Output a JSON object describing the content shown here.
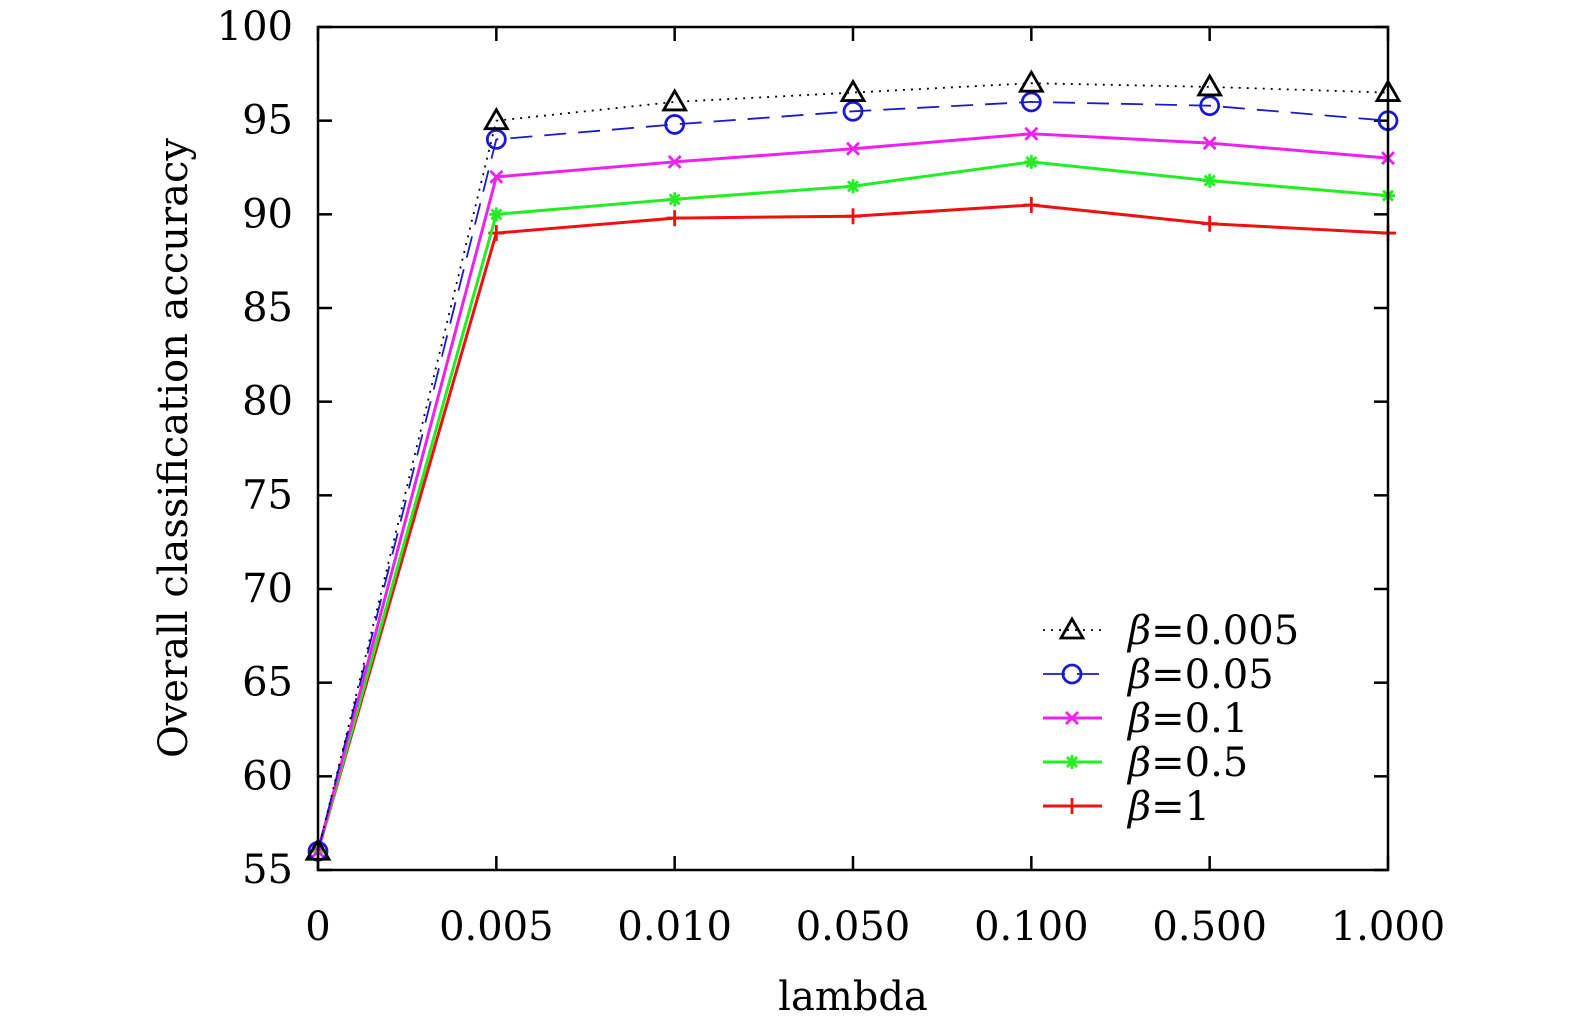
{
  "chart_data": {
    "type": "line",
    "title": "",
    "xlabel": "lambda",
    "ylabel": "Overall classification accuracy",
    "categories": [
      "0",
      "0.005",
      "0.010",
      "0.050",
      "0.100",
      "0.500",
      "1.000"
    ],
    "ylim": [
      55,
      100
    ],
    "yticks": [
      55,
      60,
      65,
      70,
      75,
      80,
      85,
      90,
      95,
      100
    ],
    "grid": false,
    "legend_position": "bottom-right",
    "series": [
      {
        "name": "β=0.005",
        "symbol": "β",
        "value_text": "=0.005",
        "color": "#000000",
        "line_style": "dotted",
        "marker": "triangle",
        "values": [
          56,
          95,
          96,
          96.5,
          97,
          96.8,
          96.5
        ]
      },
      {
        "name": "β=0.05",
        "symbol": "β",
        "value_text": "=0.05",
        "color": "#1a1acc",
        "line_style": "dashed",
        "marker": "circle",
        "values": [
          56,
          94,
          94.8,
          95.5,
          96,
          95.8,
          95
        ]
      },
      {
        "name": "β=0.1",
        "symbol": "β",
        "value_text": "=0.1",
        "color": "#ee22ee",
        "line_style": "solid",
        "marker": "x",
        "values": [
          56,
          92,
          92.8,
          93.5,
          94.3,
          93.8,
          93
        ]
      },
      {
        "name": "β=0.5",
        "symbol": "β",
        "value_text": "=0.5",
        "color": "#22ee22",
        "line_style": "solid",
        "marker": "star",
        "values": [
          56,
          90,
          90.8,
          91.5,
          92.8,
          91.8,
          91
        ]
      },
      {
        "name": "β=1",
        "symbol": "β",
        "value_text": "=1",
        "color": "#ee1111",
        "line_style": "solid",
        "marker": "plus",
        "values": [
          56,
          89,
          89.8,
          89.9,
          90.5,
          89.5,
          89
        ]
      }
    ]
  }
}
